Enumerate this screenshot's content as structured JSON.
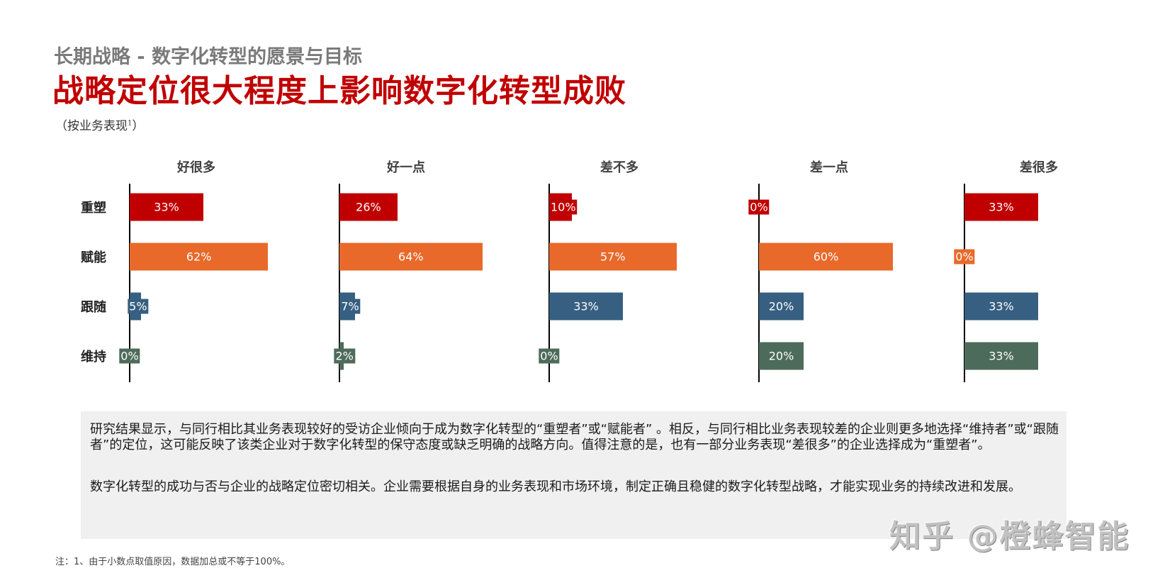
{
  "header": {
    "supertitle": "长期战略 - 数字化转型的愿景与目标",
    "title": "战略定位很大程度上影响数字化转型成败",
    "subtitle": "（按业务表现",
    "subtitle_sup": "1",
    "subtitle_close": "）"
  },
  "colors": {
    "重塑": "#c00000",
    "赋能": "#e8692a",
    "跟随": "#365f81",
    "维持": "#4d6b5a",
    "title_red": "#c00000",
    "note_bg": "#f0f0f0"
  },
  "chart_data": {
    "type": "bar",
    "orientation": "horizontal",
    "layout": "small-multiples",
    "title": "战略定位很大程度上影响数字化转型成败",
    "subtitle": "（按业务表现1）",
    "panels": [
      "好很多",
      "好一点",
      "差不多",
      "差一点",
      "差很多"
    ],
    "categories": [
      "重塑",
      "赋能",
      "跟随",
      "维持"
    ],
    "series": [
      {
        "name": "好很多",
        "values": [
          33,
          62,
          5,
          0
        ],
        "labels": [
          "33%",
          "62%",
          "5%",
          "0%"
        ]
      },
      {
        "name": "好一点",
        "values": [
          26,
          64,
          7,
          2
        ],
        "labels": [
          "26%",
          "64%",
          "7%",
          "2%"
        ]
      },
      {
        "name": "差不多",
        "values": [
          10,
          57,
          33,
          0
        ],
        "labels": [
          "10%",
          "57%",
          "33%",
          "0%"
        ]
      },
      {
        "name": "差一点",
        "values": [
          0,
          60,
          20,
          20
        ],
        "labels": [
          "0%",
          "60%",
          "20%",
          "20%"
        ]
      },
      {
        "name": "差很多",
        "values": [
          33,
          0,
          33,
          33
        ],
        "labels": [
          "33%",
          "0%",
          "33%",
          "33%"
        ]
      }
    ],
    "xlabel": "",
    "ylabel": "",
    "unit": "%",
    "grid": false,
    "legend": "none",
    "xlim": [
      0,
      100
    ]
  },
  "note": {
    "p1": "研究结果显示，与同行相比其业务表现较好的受访企业倾向于成为数字化转型的“重塑者”或“赋能者” 。相反，与同行相比业务表现较差的企业则更多地选择“维持者”或“跟随者”的定位，这可能反映了该类企业对于数字化转型的保守态度或缺乏明确的战略方向。值得注意的是，也有一部分业务表现“差很多”的企业选择成为“重塑者”。",
    "p2": "数字化转型的成功与否与企业的战略定位密切相关。企业需要根据自身的业务表现和市场环境，制定正确且稳健的数字化转型战略，才能实现业务的持续改进和发展。"
  },
  "footnote": "注：1、由于小数点取值原因，数据加总或不等于100%。",
  "watermark": "知乎 @橙蜂智能"
}
